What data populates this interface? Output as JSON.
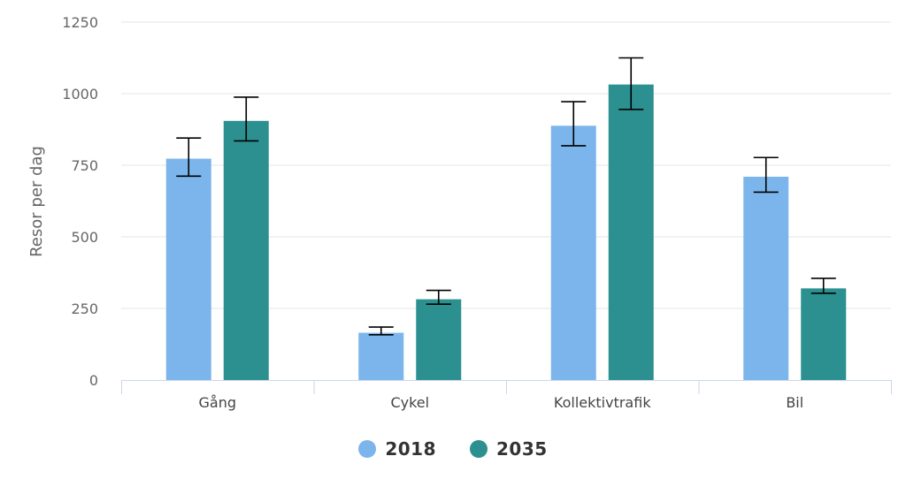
{
  "chart_data": {
    "type": "bar",
    "ylabel": "Resor per dag",
    "ylim": [
      0,
      1250
    ],
    "yticks": [
      0,
      250,
      500,
      750,
      1000,
      1250
    ],
    "categories": [
      "Gång",
      "Cykel",
      "Kollektivtrafik",
      "Bil"
    ],
    "grid": true,
    "legend_position": "bottom",
    "series": [
      {
        "name": "2018",
        "color": "#7cb5ec",
        "values": [
          773,
          165,
          888,
          710
        ],
        "error_low": [
          712,
          158,
          818,
          656
        ],
        "error_high": [
          845,
          185,
          972,
          777
        ]
      },
      {
        "name": "2035",
        "color": "#2b908f",
        "values": [
          905,
          282,
          1032,
          320
        ],
        "error_low": [
          835,
          265,
          945,
          303
        ],
        "error_high": [
          988,
          313,
          1125,
          355
        ]
      }
    ]
  }
}
